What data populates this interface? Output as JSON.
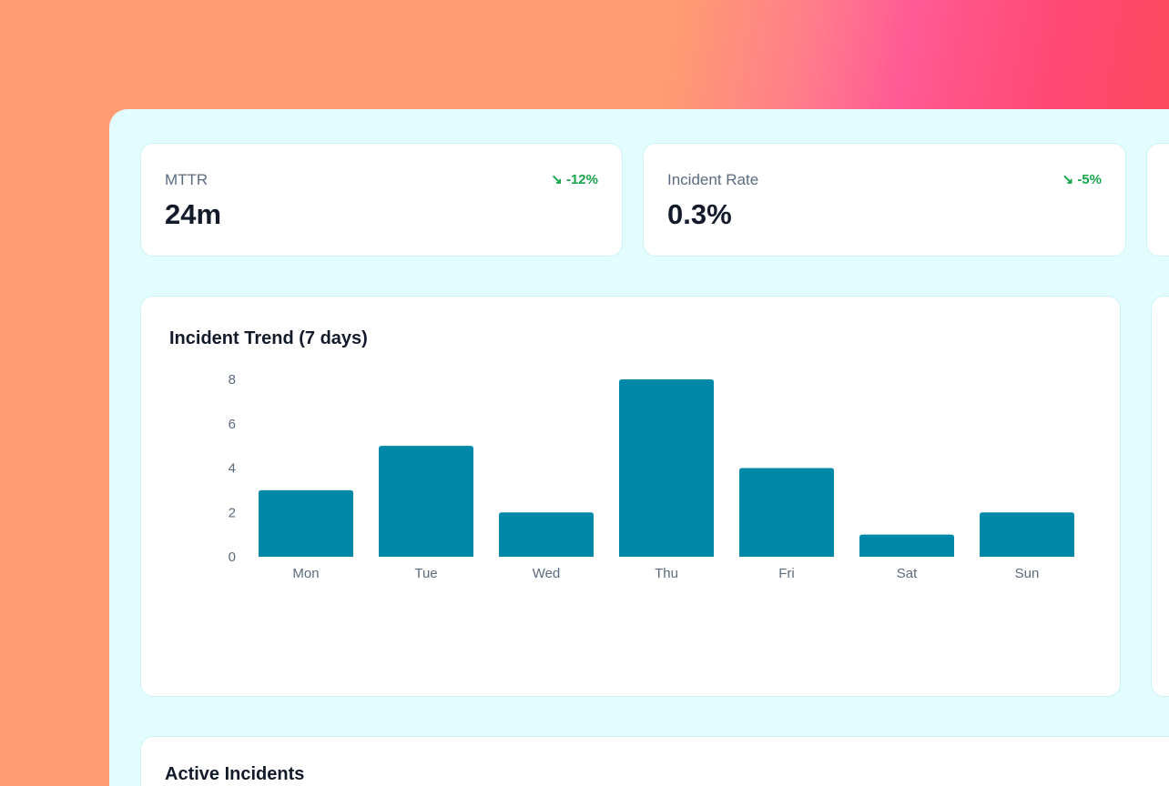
{
  "kpis": [
    {
      "label": "MTTR",
      "value": "24m",
      "delta": "-12%",
      "trend_icon": "trending-down-icon"
    },
    {
      "label": "Incident Rate",
      "value": "0.3%",
      "delta": "-5%",
      "trend_icon": "trending-down-icon"
    }
  ],
  "chart_title": "Incident Trend (7 days)",
  "active_incidents_title": "Active Incidents",
  "colors": {
    "bar": "#0088a9",
    "positive": "#16a34a",
    "panel": "#e3fdfe"
  },
  "chart_data": {
    "type": "bar",
    "title": "Incident Trend (7 days)",
    "categories": [
      "Mon",
      "Tue",
      "Wed",
      "Thu",
      "Fri",
      "Sat",
      "Sun"
    ],
    "values": [
      3,
      5,
      2,
      8,
      4,
      1,
      2
    ],
    "yticks": [
      0,
      2,
      4,
      6,
      8
    ],
    "ylim": [
      0,
      8
    ],
    "grid": false
  }
}
